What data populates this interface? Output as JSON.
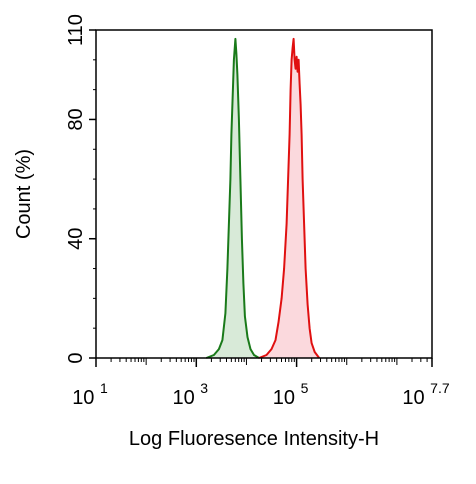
{
  "chart_data": {
    "type": "area",
    "xlabel": "Log Fluoresence Intensity-H",
    "ylabel": "Count  (%)",
    "x_scale": "log10",
    "xlim": [
      1,
      7.7
    ],
    "ylim": [
      0,
      110
    ],
    "x_ticks": [
      {
        "value": 1,
        "base": "10",
        "exp": "1"
      },
      {
        "value": 3,
        "base": "10",
        "exp": "3"
      },
      {
        "value": 5,
        "base": "10",
        "exp": "5"
      },
      {
        "value": 7.7,
        "base": "10",
        "exp": "7.7"
      }
    ],
    "y_ticks": [
      {
        "value": 0,
        "label": "0"
      },
      {
        "value": 40,
        "label": "40"
      },
      {
        "value": 80,
        "label": "80"
      },
      {
        "value": 110,
        "label": "110"
      }
    ],
    "grid": false,
    "series": [
      {
        "color": "#1a7a1a",
        "fill": "#d8ead8",
        "points": [
          [
            3.2,
            0
          ],
          [
            3.35,
            1
          ],
          [
            3.45,
            3
          ],
          [
            3.52,
            6
          ],
          [
            3.58,
            15
          ],
          [
            3.62,
            30
          ],
          [
            3.65,
            45
          ],
          [
            3.68,
            60
          ],
          [
            3.7,
            75
          ],
          [
            3.73,
            90
          ],
          [
            3.75,
            100
          ],
          [
            3.78,
            107
          ],
          [
            3.8,
            102
          ],
          [
            3.82,
            95
          ],
          [
            3.85,
            80
          ],
          [
            3.88,
            60
          ],
          [
            3.91,
            40
          ],
          [
            3.94,
            25
          ],
          [
            3.97,
            14
          ],
          [
            4.02,
            7
          ],
          [
            4.08,
            3
          ],
          [
            4.15,
            1
          ],
          [
            4.25,
            0
          ]
        ]
      },
      {
        "color": "#e01010",
        "fill": "#fbd9dd",
        "points": [
          [
            4.25,
            0
          ],
          [
            4.4,
            1
          ],
          [
            4.5,
            3
          ],
          [
            4.58,
            6
          ],
          [
            4.64,
            12
          ],
          [
            4.7,
            20
          ],
          [
            4.75,
            30
          ],
          [
            4.8,
            45
          ],
          [
            4.83,
            60
          ],
          [
            4.86,
            75
          ],
          [
            4.88,
            90
          ],
          [
            4.9,
            100
          ],
          [
            4.92,
            104
          ],
          [
            4.94,
            107
          ],
          [
            4.96,
            100
          ],
          [
            4.98,
            97
          ],
          [
            5.0,
            101
          ],
          [
            5.02,
            96
          ],
          [
            5.04,
            100
          ],
          [
            5.06,
            92
          ],
          [
            5.08,
            85
          ],
          [
            5.1,
            75
          ],
          [
            5.12,
            60
          ],
          [
            5.15,
            45
          ],
          [
            5.18,
            30
          ],
          [
            5.22,
            18
          ],
          [
            5.26,
            10
          ],
          [
            5.3,
            5
          ],
          [
            5.36,
            2
          ],
          [
            5.45,
            0
          ]
        ]
      }
    ]
  }
}
